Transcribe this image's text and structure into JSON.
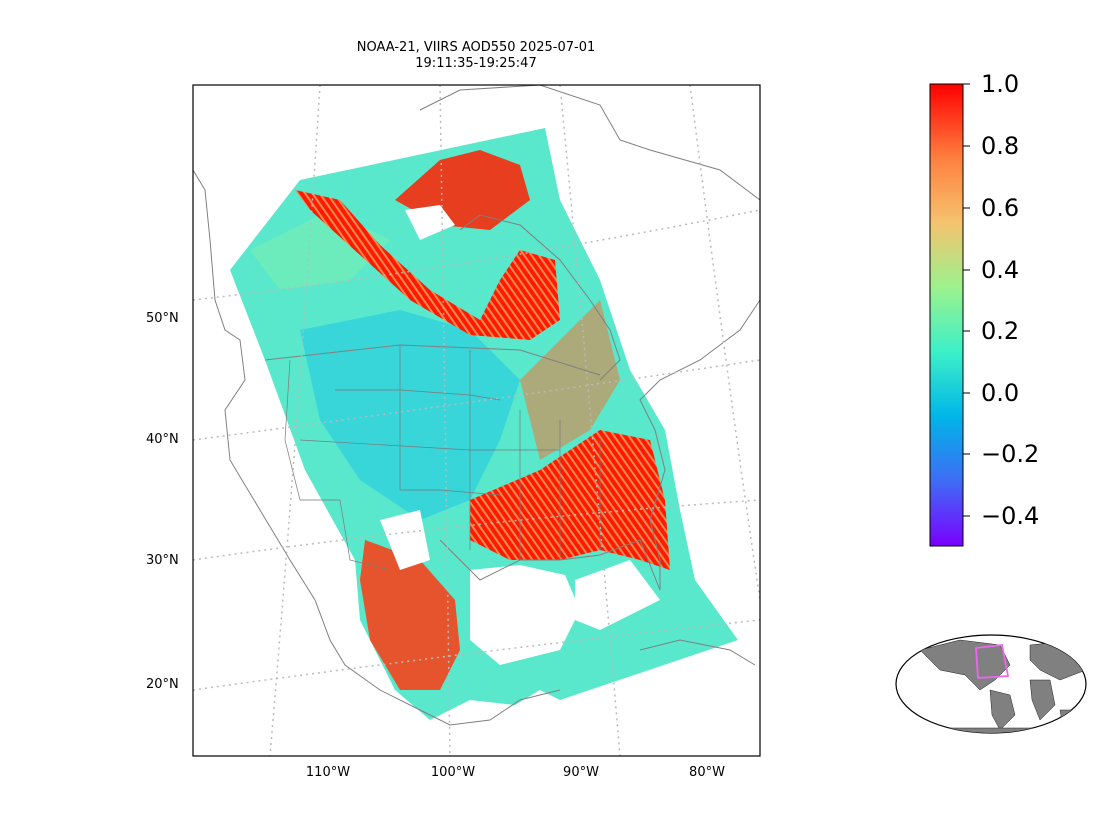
{
  "title": {
    "line1": "NOAA-21, VIIRS AOD550 2025-07-01",
    "line2": "19:11:35-19:25:47"
  },
  "map": {
    "projection": "lambert conformal conic",
    "lat_labels": [
      "50°N",
      "40°N",
      "30°N",
      "20°N"
    ],
    "lon_labels": [
      "110°W",
      "100°W",
      "90°W",
      "80°W"
    ],
    "gridlines": "dotted",
    "layers": [
      "coastlines",
      "country borders",
      "US state borders"
    ],
    "no_data_color": "#ffffff"
  },
  "colorbar": {
    "colormap": "rainbow",
    "range": [
      -0.5,
      1.0
    ],
    "ticks": [
      "1.0",
      "0.8",
      "0.6",
      "0.4",
      "0.2",
      "0.0",
      "−0.2",
      "−0.4"
    ],
    "colors": [
      "#ff0000",
      "#ff7f3f",
      "#f5c36e",
      "#9cf28d",
      "#3cf0c8",
      "#00b5e8",
      "#3f6cf6",
      "#7a2cff"
    ]
  },
  "inset": {
    "description": "global locator",
    "land_color": "#808080",
    "box_color": "#ee66ee"
  }
}
